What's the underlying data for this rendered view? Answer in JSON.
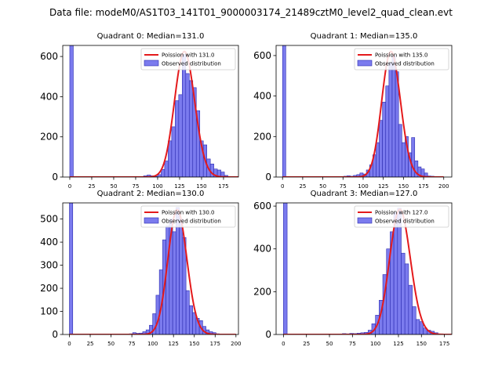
{
  "suptitle": "Data file: modeM0/AS1T03_141T01_9000003174_21489cztM0_level2_quad_clean.evt",
  "colors": {
    "hist_fill": "#7b7bee",
    "hist_edge": "#2b2bb0",
    "poisson_line": "#e41a1c",
    "axis": "#000000"
  },
  "chart_data": [
    {
      "type": "bar",
      "title": "Quadrant 0: Median=131.0",
      "xlim": [
        -8,
        192
      ],
      "ylim": [
        0,
        655
      ],
      "xticks": [
        0,
        25,
        50,
        75,
        100,
        125,
        150,
        175
      ],
      "yticks": [
        0,
        200,
        400,
        600
      ],
      "bin_width": 4,
      "bins": [
        {
          "x": 0,
          "count": 655
        },
        {
          "x": 84,
          "count": 6
        },
        {
          "x": 88,
          "count": 10
        },
        {
          "x": 92,
          "count": 6
        },
        {
          "x": 96,
          "count": 3
        },
        {
          "x": 100,
          "count": 12
        },
        {
          "x": 104,
          "count": 38
        },
        {
          "x": 108,
          "count": 80
        },
        {
          "x": 112,
          "count": 180
        },
        {
          "x": 116,
          "count": 250
        },
        {
          "x": 120,
          "count": 380
        },
        {
          "x": 124,
          "count": 410
        },
        {
          "x": 128,
          "count": 610
        },
        {
          "x": 132,
          "count": 515
        },
        {
          "x": 136,
          "count": 480
        },
        {
          "x": 140,
          "count": 445
        },
        {
          "x": 144,
          "count": 330
        },
        {
          "x": 148,
          "count": 180
        },
        {
          "x": 152,
          "count": 160
        },
        {
          "x": 156,
          "count": 90
        },
        {
          "x": 160,
          "count": 65
        },
        {
          "x": 164,
          "count": 40
        },
        {
          "x": 168,
          "count": 35
        },
        {
          "x": 172,
          "count": 25
        },
        {
          "x": 176,
          "count": 8
        }
      ],
      "poisson": {
        "mean": 131.0,
        "peak": 625
      },
      "legend": {
        "line_label": "Poission with 131.0",
        "bar_label": "Observed distribution",
        "location": "upper right"
      }
    },
    {
      "type": "bar",
      "title": "Quadrant 1: Median=135.0",
      "xlim": [
        -8,
        210
      ],
      "ylim": [
        0,
        650
      ],
      "xticks": [
        0,
        25,
        50,
        75,
        100,
        125,
        150,
        175,
        200
      ],
      "yticks": [
        0,
        200,
        400,
        600
      ],
      "bin_width": 4,
      "bins": [
        {
          "x": 0,
          "count": 650
        },
        {
          "x": 76,
          "count": 4
        },
        {
          "x": 80,
          "count": 6
        },
        {
          "x": 84,
          "count": 4
        },
        {
          "x": 88,
          "count": 8
        },
        {
          "x": 92,
          "count": 12
        },
        {
          "x": 96,
          "count": 20
        },
        {
          "x": 100,
          "count": 15
        },
        {
          "x": 104,
          "count": 35
        },
        {
          "x": 108,
          "count": 60
        },
        {
          "x": 112,
          "count": 110
        },
        {
          "x": 116,
          "count": 170
        },
        {
          "x": 120,
          "count": 280
        },
        {
          "x": 124,
          "count": 370
        },
        {
          "x": 128,
          "count": 450
        },
        {
          "x": 132,
          "count": 565
        },
        {
          "x": 136,
          "count": 600
        },
        {
          "x": 140,
          "count": 520
        },
        {
          "x": 144,
          "count": 260
        },
        {
          "x": 148,
          "count": 170
        },
        {
          "x": 152,
          "count": 200
        },
        {
          "x": 156,
          "count": 120
        },
        {
          "x": 160,
          "count": 195
        },
        {
          "x": 164,
          "count": 80
        },
        {
          "x": 168,
          "count": 50
        },
        {
          "x": 172,
          "count": 40
        },
        {
          "x": 176,
          "count": 20
        },
        {
          "x": 180,
          "count": 5
        },
        {
          "x": 184,
          "count": 4
        }
      ],
      "poisson": {
        "mean": 135.0,
        "peak": 620
      },
      "legend": {
        "line_label": "Poission with 135.0",
        "bar_label": "Observed distribution",
        "location": "upper right"
      }
    },
    {
      "type": "bar",
      "title": "Quadrant 2: Median=130.0",
      "xlim": [
        -8,
        203
      ],
      "ylim": [
        0,
        570
      ],
      "xticks": [
        0,
        25,
        50,
        75,
        100,
        125,
        150,
        175,
        200
      ],
      "yticks": [
        0,
        100,
        200,
        300,
        400,
        500
      ],
      "bin_width": 4,
      "bins": [
        {
          "x": 0,
          "count": 570
        },
        {
          "x": 72,
          "count": 3
        },
        {
          "x": 76,
          "count": 8
        },
        {
          "x": 80,
          "count": 5
        },
        {
          "x": 84,
          "count": 6
        },
        {
          "x": 88,
          "count": 12
        },
        {
          "x": 92,
          "count": 20
        },
        {
          "x": 96,
          "count": 40
        },
        {
          "x": 100,
          "count": 90
        },
        {
          "x": 104,
          "count": 170
        },
        {
          "x": 108,
          "count": 280
        },
        {
          "x": 112,
          "count": 410
        },
        {
          "x": 116,
          "count": 470
        },
        {
          "x": 120,
          "count": 500
        },
        {
          "x": 124,
          "count": 445
        },
        {
          "x": 128,
          "count": 550
        },
        {
          "x": 132,
          "count": 500
        },
        {
          "x": 136,
          "count": 420
        },
        {
          "x": 140,
          "count": 190
        },
        {
          "x": 144,
          "count": 125
        },
        {
          "x": 148,
          "count": 95
        },
        {
          "x": 152,
          "count": 70
        },
        {
          "x": 156,
          "count": 60
        },
        {
          "x": 160,
          "count": 35
        },
        {
          "x": 164,
          "count": 20
        },
        {
          "x": 168,
          "count": 12
        },
        {
          "x": 172,
          "count": 8
        },
        {
          "x": 176,
          "count": 3
        }
      ],
      "poisson": {
        "mean": 130.0,
        "peak": 540
      },
      "legend": {
        "line_label": "Poission with 130.0",
        "bar_label": "Observed distribution",
        "location": "upper right"
      }
    },
    {
      "type": "bar",
      "title": "Quadrant 3: Median=127.0",
      "xlim": [
        -8,
        183
      ],
      "ylim": [
        0,
        615
      ],
      "xticks": [
        0,
        25,
        50,
        75,
        100,
        125,
        150,
        175
      ],
      "yticks": [
        0,
        200,
        400,
        600
      ],
      "bin_width": 4,
      "bins": [
        {
          "x": 0,
          "count": 615
        },
        {
          "x": 64,
          "count": 4
        },
        {
          "x": 68,
          "count": 3
        },
        {
          "x": 72,
          "count": 5
        },
        {
          "x": 76,
          "count": 4
        },
        {
          "x": 80,
          "count": 6
        },
        {
          "x": 84,
          "count": 8
        },
        {
          "x": 88,
          "count": 10
        },
        {
          "x": 92,
          "count": 20
        },
        {
          "x": 96,
          "count": 50
        },
        {
          "x": 100,
          "count": 90
        },
        {
          "x": 104,
          "count": 160
        },
        {
          "x": 108,
          "count": 280
        },
        {
          "x": 112,
          "count": 400
        },
        {
          "x": 116,
          "count": 480
        },
        {
          "x": 120,
          "count": 570
        },
        {
          "x": 124,
          "count": 590
        },
        {
          "x": 128,
          "count": 380
        },
        {
          "x": 132,
          "count": 330
        },
        {
          "x": 136,
          "count": 230
        },
        {
          "x": 140,
          "count": 130
        },
        {
          "x": 144,
          "count": 70
        },
        {
          "x": 148,
          "count": 60
        },
        {
          "x": 152,
          "count": 30
        },
        {
          "x": 156,
          "count": 20
        },
        {
          "x": 160,
          "count": 15
        },
        {
          "x": 164,
          "count": 8
        }
      ],
      "poisson": {
        "mean": 127.0,
        "peak": 585
      },
      "legend": {
        "line_label": "Poission with 127.0",
        "bar_label": "Observed distribution",
        "location": "upper right"
      }
    }
  ]
}
